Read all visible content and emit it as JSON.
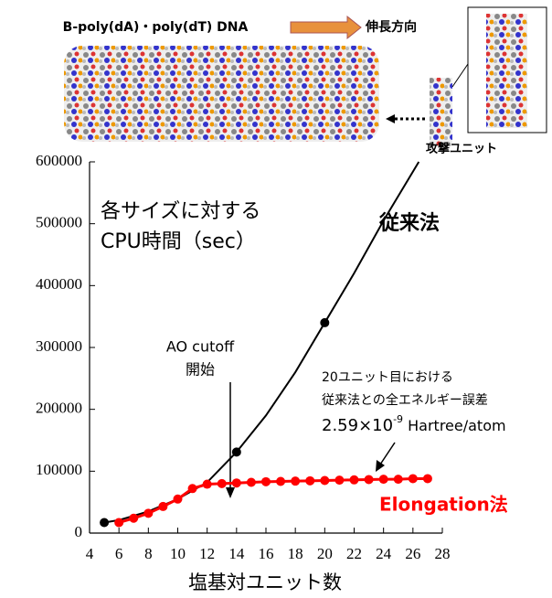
{
  "chart_data": {
    "type": "line",
    "header": {
      "title": "B-poly(dA)・poly(dT) DNA",
      "direction": "伸長方向",
      "attack_unit": "攻撃ユニット"
    },
    "x_label": "塩基対ユニット数",
    "xlim": [
      4,
      28
    ],
    "xticks": [
      4,
      6,
      8,
      10,
      12,
      14,
      16,
      18,
      20,
      22,
      24,
      26,
      28
    ],
    "ylim": [
      0,
      600000
    ],
    "yticks": [
      0,
      100000,
      200000,
      300000,
      400000,
      500000,
      600000
    ],
    "annotations": {
      "cpu_time": [
        "各サイズに対する",
        "CPU時間（sec）"
      ],
      "ao_cutoff": [
        "AO cutoff",
        "開始"
      ],
      "error": [
        "20ユニット目における",
        "従来法との全エネルギー誤差"
      ],
      "error_value": "2.59×10",
      "error_exponent": "-9",
      "error_unit": " Hartree/atom"
    },
    "series": [
      {
        "name": "従来法",
        "color": "#000000",
        "x": [
          5,
          14,
          20
        ],
        "values": [
          17000,
          131000,
          340000
        ]
      },
      {
        "name": "Elongation法",
        "color": "#ff0000",
        "x": [
          6,
          7,
          8,
          9,
          10,
          11,
          12,
          13,
          14,
          15,
          16,
          17,
          18,
          19,
          20,
          21,
          22,
          23,
          24,
          25,
          26,
          27
        ],
        "values": [
          17000,
          24000,
          32000,
          43000,
          55000,
          72000,
          79000,
          80000,
          81000,
          82000,
          83000,
          83500,
          84000,
          84500,
          85000,
          85500,
          86000,
          86500,
          87000,
          87000,
          88000,
          88000
        ]
      }
    ],
    "fit_curve": {
      "color": "#000000",
      "x": [
        5,
        6,
        8,
        10,
        12,
        14,
        16,
        18,
        20,
        22,
        24,
        26.4
      ],
      "values": [
        17000,
        21000,
        35000,
        55000,
        82000,
        131000,
        190000,
        260000,
        340000,
        420000,
        505000,
        600000
      ]
    }
  }
}
